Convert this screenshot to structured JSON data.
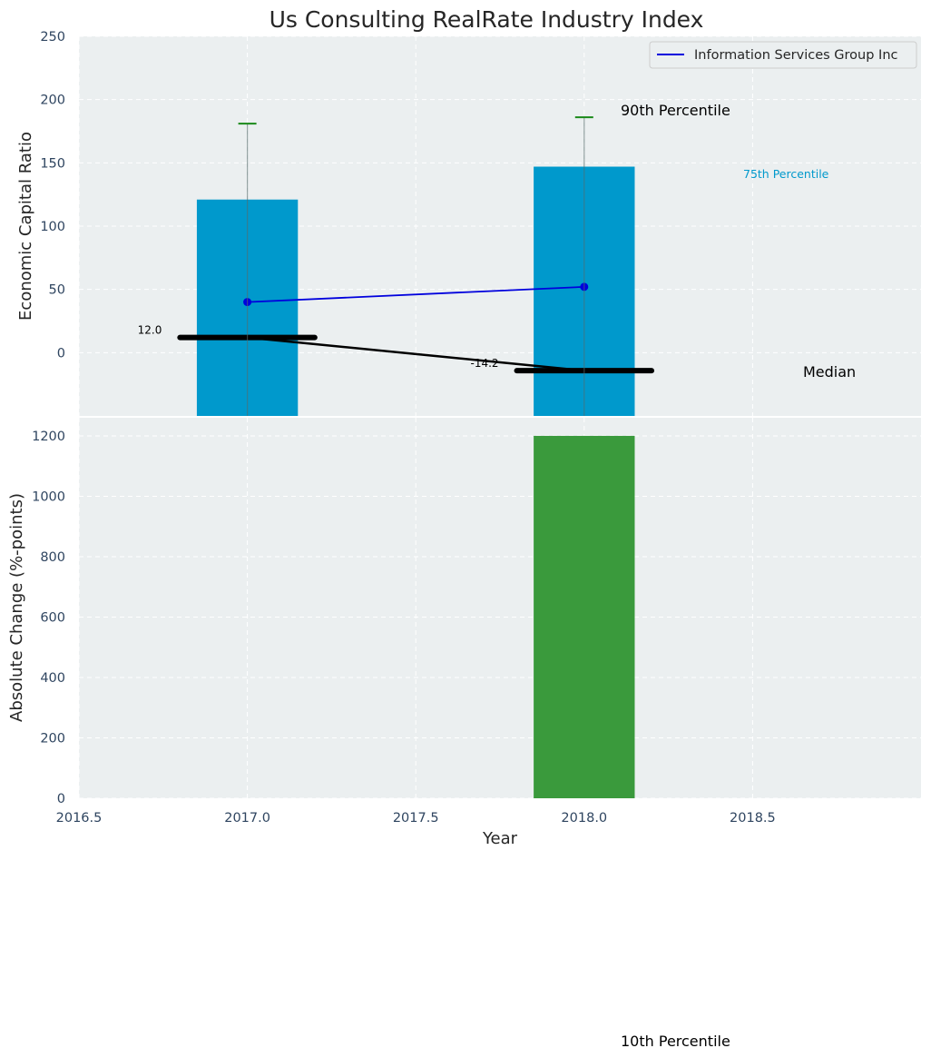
{
  "chart_data": [
    {
      "type": "bar",
      "title": "Us Consulting RealRate Industry Index",
      "ylabel": "Economic Capital Ratio",
      "xlim": [
        2016.5,
        2019.0
      ],
      "ylim": [
        -50,
        250
      ],
      "yticks": [
        0,
        50,
        100,
        150,
        200,
        250
      ],
      "grid": true,
      "legend_position": "top-right",
      "bar_color": "#0099cc",
      "bars": [
        {
          "x": 2017,
          "percentile_75": 121,
          "percentile_90": 181
        },
        {
          "x": 2018,
          "percentile_75": 147,
          "percentile_90": 186
        }
      ],
      "median": [
        {
          "x": 2017,
          "value": 12.0,
          "label": "12.0"
        },
        {
          "x": 2018,
          "value": -14.2,
          "label": "-14.2"
        }
      ],
      "series": [
        {
          "name": "Information Services Group Inc",
          "color": "#0000dd",
          "points": [
            {
              "x": 2017,
              "y": 40
            },
            {
              "x": 2018,
              "y": 52
            }
          ]
        }
      ],
      "annotations": {
        "p90": "90th Percentile",
        "p75": "75th Percentile",
        "median": "Median",
        "p10": "10th Percentile"
      }
    },
    {
      "type": "bar",
      "xlabel": "Year",
      "ylabel": "Absolute Change (%-points)",
      "xlim": [
        2016.5,
        2019.0
      ],
      "xticks": [
        "2016.5",
        "2017.0",
        "2017.5",
        "2018.0",
        "2018.5"
      ],
      "ylim": [
        0,
        1260
      ],
      "yticks": [
        0,
        200,
        400,
        600,
        800,
        1000,
        1200
      ],
      "grid": true,
      "bar_color": "#3a9a3c",
      "bars": [
        {
          "x": 2018,
          "y": 1200
        }
      ]
    }
  ]
}
